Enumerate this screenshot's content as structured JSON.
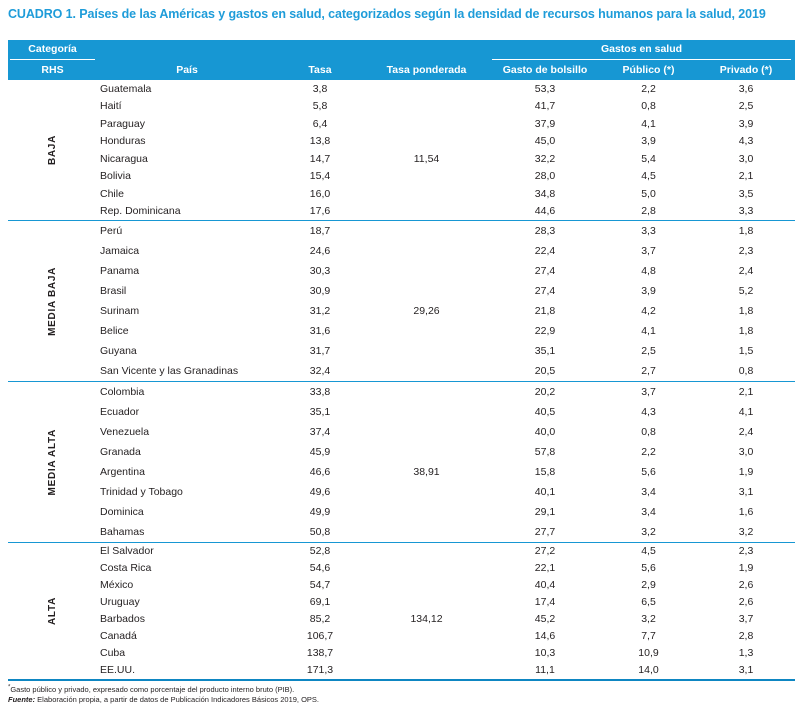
{
  "title": "CUADRO 1. Países de las Américas y gastos en salud, categorizados según la densidad de recursos humanos para la salud, 2019",
  "colors": {
    "accent_blue": "#1797d3",
    "title_blue": "#1e9cd9",
    "bottom_border_blue": "#0e86c2",
    "text": "#231f20"
  },
  "header": {
    "categoria": "Categoría",
    "rhs": "RHS",
    "pais": "País",
    "tasa": "Tasa",
    "tasa_ponderada": "Tasa ponderada",
    "gastos_en_salud": "Gastos en salud",
    "gasto_bolsillo": "Gasto de bolsillo",
    "publico": "Público (*)",
    "privado": "Privado (*)"
  },
  "sections": [
    {
      "category": "BAJA",
      "rows": [
        [
          "Guatemala",
          "3,8",
          "",
          "53,3",
          "2,2",
          "3,6"
        ],
        [
          "Haití",
          "5,8",
          "",
          "41,7",
          "0,8",
          "2,5"
        ],
        [
          "Paraguay",
          "6,4",
          "",
          "37,9",
          "4,1",
          "3,9"
        ],
        [
          "Honduras",
          "13,8",
          "",
          "45,0",
          "3,9",
          "4,3"
        ],
        [
          "Nicaragua",
          "14,7",
          "11,54",
          "32,2",
          "5,4",
          "3,0"
        ],
        [
          "Bolivia",
          "15,4",
          "",
          "28,0",
          "4,5",
          "2,1"
        ],
        [
          "Chile",
          "16,0",
          "",
          "34,8",
          "5,0",
          "3,5"
        ],
        [
          "Rep. Dominicana",
          "17,6",
          "",
          "44,6",
          "2,8",
          "3,3"
        ]
      ]
    },
    {
      "category": "MEDIA BAJA",
      "rows": [
        [
          "Perú",
          "18,7",
          "",
          "28,3",
          "3,3",
          "1,8"
        ],
        [
          "Jamaica",
          "24,6",
          "",
          "22,4",
          "3,7",
          "2,3"
        ],
        [
          "Panama",
          "30,3",
          "",
          "27,4",
          "4,8",
          "2,4"
        ],
        [
          "Brasil",
          "30,9",
          "",
          "27,4",
          "3,9",
          "5,2"
        ],
        [
          "Surinam",
          "31,2",
          "29,26",
          "21,8",
          "4,2",
          "1,8"
        ],
        [
          "Belice",
          "31,6",
          "",
          "22,9",
          "4,1",
          "1,8"
        ],
        [
          "Guyana",
          "31,7",
          "",
          "35,1",
          "2,5",
          "1,5"
        ],
        [
          "San Vicente y las Granadinas",
          "32,4",
          "",
          "20,5",
          "2,7",
          "0,8"
        ]
      ]
    },
    {
      "category": "MEDIA ALTA",
      "rows": [
        [
          "Colombia",
          "33,8",
          "",
          "20,2",
          "3,7",
          "2,1"
        ],
        [
          "Ecuador",
          "35,1",
          "",
          "40,5",
          "4,3",
          "4,1"
        ],
        [
          "Venezuela",
          "37,4",
          "",
          "40,0",
          "0,8",
          "2,4"
        ],
        [
          "Granada",
          "45,9",
          "",
          "57,8",
          "2,2",
          "3,0"
        ],
        [
          "Argentina",
          "46,6",
          "38,91",
          "15,8",
          "5,6",
          "1,9"
        ],
        [
          "Trinidad y Tobago",
          "49,6",
          "",
          "40,1",
          "3,4",
          "3,1"
        ],
        [
          "Dominica",
          "49,9",
          "",
          "29,1",
          "3,4",
          "1,6"
        ],
        [
          "Bahamas",
          "50,8",
          "",
          "27,7",
          "3,2",
          "3,2"
        ]
      ]
    },
    {
      "category": "ALTA",
      "rows": [
        [
          "El Salvador",
          "52,8",
          "",
          "27,2",
          "4,5",
          "2,3"
        ],
        [
          "Costa Rica",
          "54,6",
          "",
          "22,1",
          "5,6",
          "1,9"
        ],
        [
          "México",
          "54,7",
          "",
          "40,4",
          "2,9",
          "2,6"
        ],
        [
          "Uruguay",
          "69,1",
          "",
          "17,4",
          "6,5",
          "2,6"
        ],
        [
          "Barbados",
          "85,2",
          "134,12",
          "45,2",
          "3,2",
          "3,7"
        ],
        [
          "Canadá",
          "106,7",
          "",
          "14,6",
          "7,7",
          "2,8"
        ],
        [
          "Cuba",
          "138,7",
          "",
          "10,3",
          "10,9",
          "1,3"
        ],
        [
          "EE.UU.",
          "171,3",
          "",
          "11,1",
          "14,0",
          "3,1"
        ]
      ]
    }
  ],
  "footnotes": {
    "note_marker": "*",
    "note": "Gasto público y privado, expresado como porcentaje del producto interno bruto (PIB).",
    "fuente_label": "Fuente:",
    "fuente": " Elaboración propia, a partir de datos de Publicación Indicadores Básicos 2019, OPS."
  }
}
